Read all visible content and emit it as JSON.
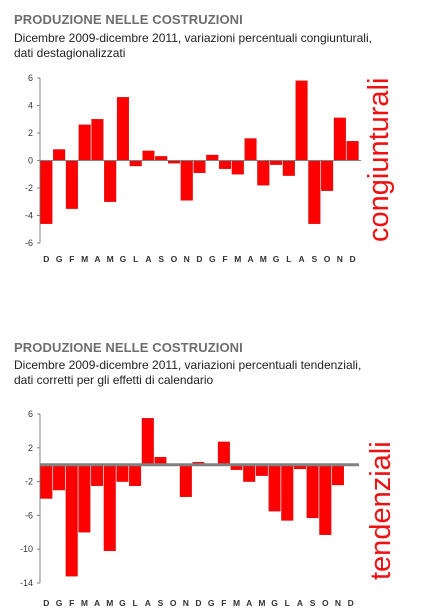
{
  "colors": {
    "bar": "#ff0000",
    "bar_stroke": "#b00000",
    "axis": "#808080",
    "side_label": "#ee1111"
  },
  "chart_data": [
    {
      "type": "bar",
      "title": "PRODUZIONE NELLE COSTRUZIONI",
      "subtitle_line1": "Dicembre 2009-dicembre 2011, variazioni percentuali congiunturali,",
      "subtitle_line2": "dati destagionalizzati",
      "side_label": "congiunturali",
      "categories": [
        "D",
        "G",
        "F",
        "M",
        "A",
        "M",
        "G",
        "L",
        "A",
        "S",
        "O",
        "N",
        "D",
        "G",
        "F",
        "M",
        "A",
        "M",
        "G",
        "L",
        "A",
        "S",
        "O",
        "N",
        "D"
      ],
      "values": [
        -4.6,
        0.8,
        -3.5,
        2.6,
        3.0,
        -3.0,
        4.6,
        -0.4,
        0.7,
        0.3,
        -0.2,
        -2.9,
        -0.9,
        0.4,
        -0.6,
        -1.0,
        1.6,
        -1.8,
        -0.3,
        -1.1,
        5.8,
        -4.6,
        -2.2,
        3.1,
        1.4
      ],
      "ylim": [
        -6,
        6
      ],
      "yticks": [
        -6,
        -4,
        -2,
        0,
        2,
        4,
        6
      ],
      "ytick_labels": [
        "-6",
        "-4",
        "-2",
        "0",
        "2",
        "4",
        "6"
      ],
      "grid": false
    },
    {
      "type": "bar",
      "title": "PRODUZIONE NELLE COSTRUZIONI",
      "subtitle_line1": "Dicembre 2009-dicembre 2011, variazioni percentuali tendenziali,",
      "subtitle_line2": "dati corretti per gli effetti di calendario",
      "side_label": "tendenziali",
      "categories": [
        "D",
        "G",
        "F",
        "M",
        "A",
        "M",
        "G",
        "L",
        "A",
        "S",
        "O",
        "N",
        "D",
        "G",
        "F",
        "M",
        "A",
        "M",
        "G",
        "L",
        "A",
        "S",
        "O",
        "N",
        "D"
      ],
      "values": [
        -4.0,
        -3.0,
        -13.2,
        -8.0,
        -2.5,
        -10.2,
        -2.0,
        -2.5,
        5.5,
        0.9,
        0.0,
        -3.8,
        0.3,
        0.0,
        2.7,
        -0.6,
        -2.0,
        -1.3,
        -5.5,
        -6.6,
        -0.5,
        -6.3,
        -8.3,
        -2.4,
        0.0
      ],
      "ylim": [
        -14,
        6
      ],
      "yticks": [
        -14,
        -10,
        -6,
        -2,
        2,
        6
      ],
      "ytick_labels": [
        "-14",
        "-10",
        "-6",
        "-2",
        "2",
        "6"
      ],
      "baseline": 0,
      "grid": false
    }
  ]
}
